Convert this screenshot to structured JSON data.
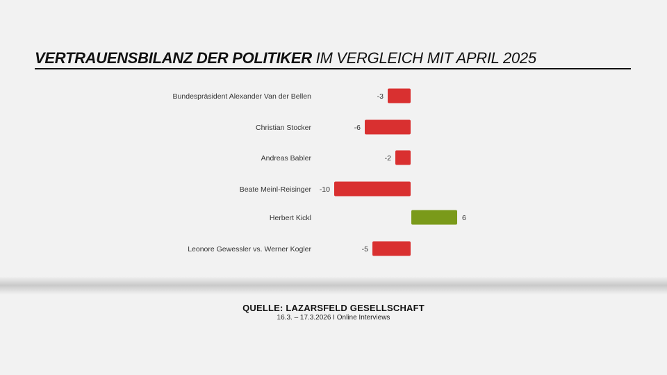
{
  "title": {
    "bold": "VERTRAUENSBILANZ DER POLITIKER",
    "regular": "IM VERGLEICH MIT APRIL 2025"
  },
  "chart_data": {
    "type": "bar",
    "orientation": "horizontal",
    "categories": [
      "Bundespräsident Alexander Van der Bellen",
      "Christian Stocker",
      "Andreas Babler",
      "Beate Meinl-Reisinger",
      "Herbert Kickl",
      "Leonore Gewessler vs. Werner Kogler"
    ],
    "values": [
      -3,
      -6,
      -2,
      -10,
      6,
      -5
    ],
    "value_labels": [
      "-3",
      "-6",
      "-2",
      "-10",
      "6",
      "-5"
    ],
    "colors": {
      "negative": "#d93030",
      "positive": "#7a9a1a"
    },
    "grid": false
  },
  "source": {
    "title": "QUELLE: LAZARSFELD GESELLSCHAFT",
    "detail": "16.3. – 17.3.2026 I Online Interviews"
  }
}
